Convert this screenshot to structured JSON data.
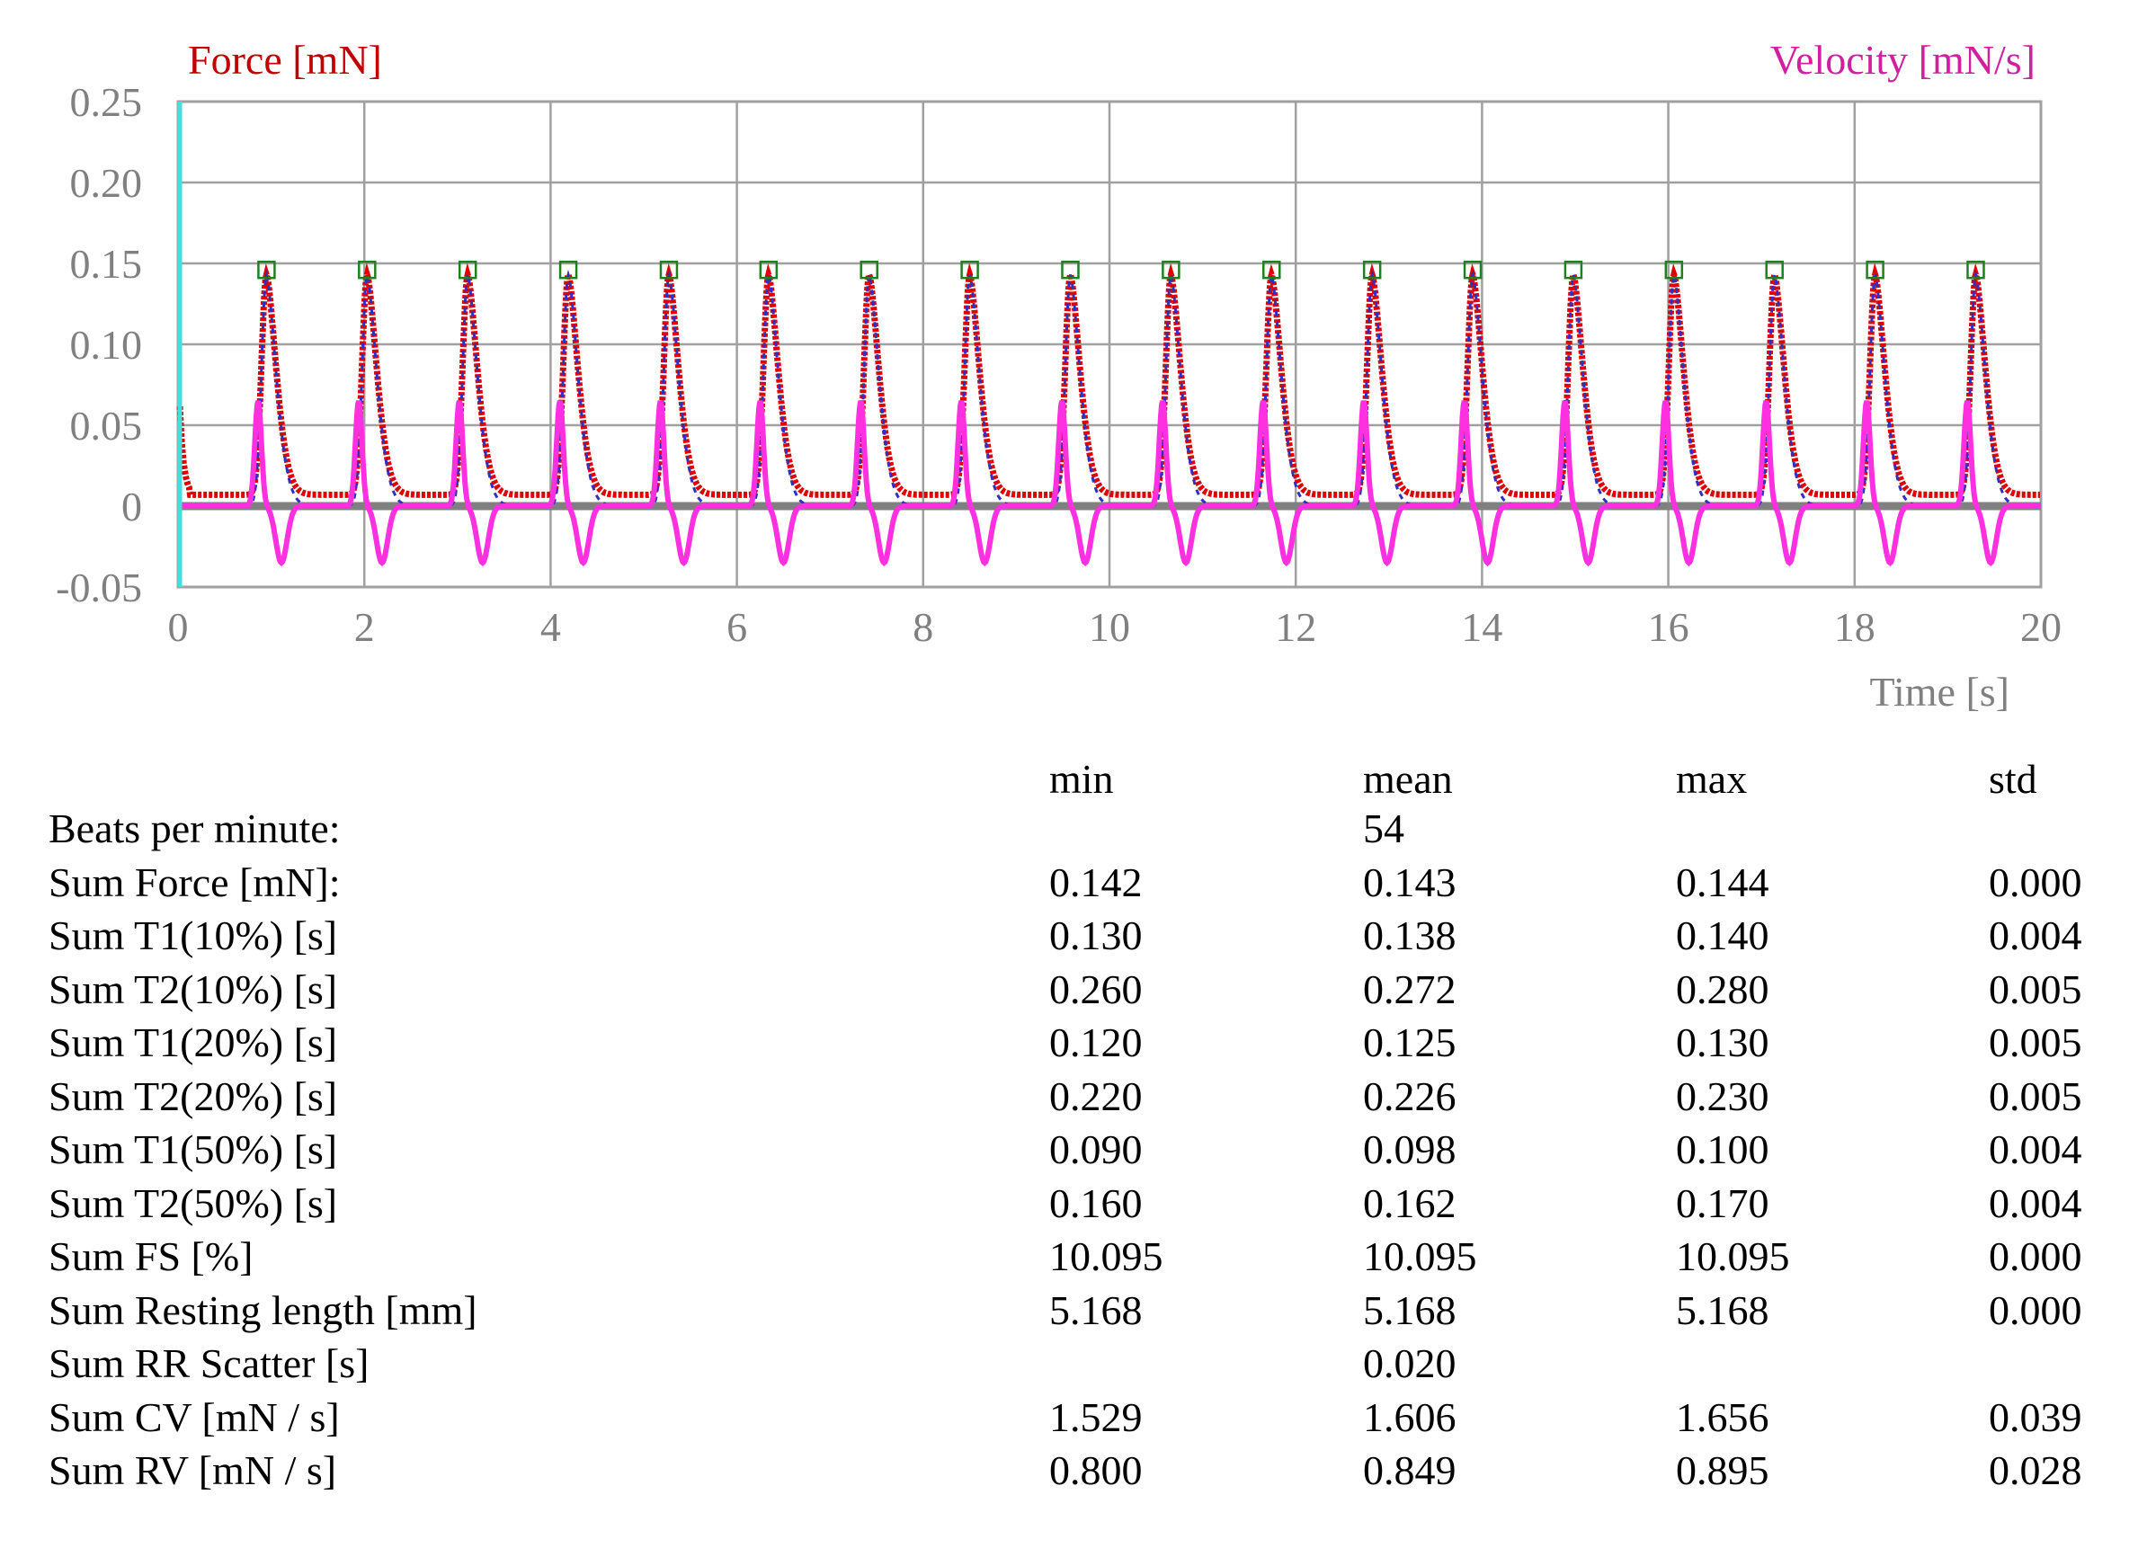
{
  "chart_data": {
    "type": "line",
    "left_axis_label": "Force [mN]",
    "right_axis_label": "Velocity [mN/s]",
    "xlabel": "Time [s]",
    "xlim": [
      0,
      20
    ],
    "ylim": [
      -0.05,
      0.25
    ],
    "x_ticks": [
      "0",
      "2",
      "4",
      "6",
      "8",
      "10",
      "12",
      "14",
      "16",
      "18",
      "20"
    ],
    "y_ticks": [
      "0.25",
      "0.20",
      "0.15",
      "0.10",
      "0.05",
      "0",
      "-0.05"
    ],
    "grid": true,
    "beat_peak_times": [
      0.95,
      2.03,
      3.11,
      4.19,
      5.27,
      6.34,
      7.42,
      8.5,
      9.58,
      10.66,
      11.74,
      12.82,
      13.9,
      14.98,
      16.06,
      17.14,
      18.22,
      19.3
    ],
    "series": [
      {
        "key": "force",
        "color": "#e00000",
        "peak": 0.143,
        "baseline": 0.007
      },
      {
        "key": "force_fit",
        "color": "#3030c0",
        "peak": 0.143,
        "baseline": 0.0
      },
      {
        "key": "velocity",
        "color": "#ff30e0",
        "max": 0.065,
        "min": -0.035
      }
    ],
    "colors": {
      "force_label": "#c00000",
      "velocity_label": "#d020a0",
      "cursor": "#40e0e0",
      "peak_marker": "#208020",
      "zero_line": "#808080",
      "grid": "#a0a0a0"
    }
  },
  "stats": {
    "headers": {
      "min": "min",
      "mean": "mean",
      "max": "max",
      "std": "std"
    },
    "rows": [
      {
        "label": "Beats per minute:",
        "min": "",
        "mean": "54",
        "max": "",
        "std": ""
      },
      {
        "label": "Sum Force [mN]:",
        "min": "0.142",
        "mean": "0.143",
        "max": "0.144",
        "std": "0.000"
      },
      {
        "label": "Sum T1(10%) [s]",
        "min": "0.130",
        "mean": "0.138",
        "max": "0.140",
        "std": "0.004"
      },
      {
        "label": "Sum T2(10%) [s]",
        "min": "0.260",
        "mean": "0.272",
        "max": "0.280",
        "std": "0.005"
      },
      {
        "label": "Sum T1(20%) [s]",
        "min": "0.120",
        "mean": "0.125",
        "max": "0.130",
        "std": "0.005"
      },
      {
        "label": "Sum T2(20%) [s]",
        "min": "0.220",
        "mean": "0.226",
        "max": "0.230",
        "std": "0.005"
      },
      {
        "label": "Sum T1(50%) [s]",
        "min": "0.090",
        "mean": "0.098",
        "max": "0.100",
        "std": "0.004"
      },
      {
        "label": "Sum T2(50%) [s]",
        "min": "0.160",
        "mean": "0.162",
        "max": "0.170",
        "std": "0.004"
      },
      {
        "label": "Sum FS [%]",
        "min": "10.095",
        "mean": "10.095",
        "max": "10.095",
        "std": "0.000"
      },
      {
        "label": "Sum Resting length [mm]",
        "min": "5.168",
        "mean": "5.168",
        "max": "5.168",
        "std": "0.000"
      },
      {
        "label": "Sum RR Scatter [s]",
        "min": "",
        "mean": "0.020",
        "max": "",
        "std": ""
      },
      {
        "label": "Sum CV [mN / s]",
        "min": "1.529",
        "mean": "1.606",
        "max": "1.656",
        "std": "0.039"
      },
      {
        "label": "Sum RV [mN / s]",
        "min": "0.800",
        "mean": "0.849",
        "max": "0.895",
        "std": "0.028"
      }
    ]
  }
}
